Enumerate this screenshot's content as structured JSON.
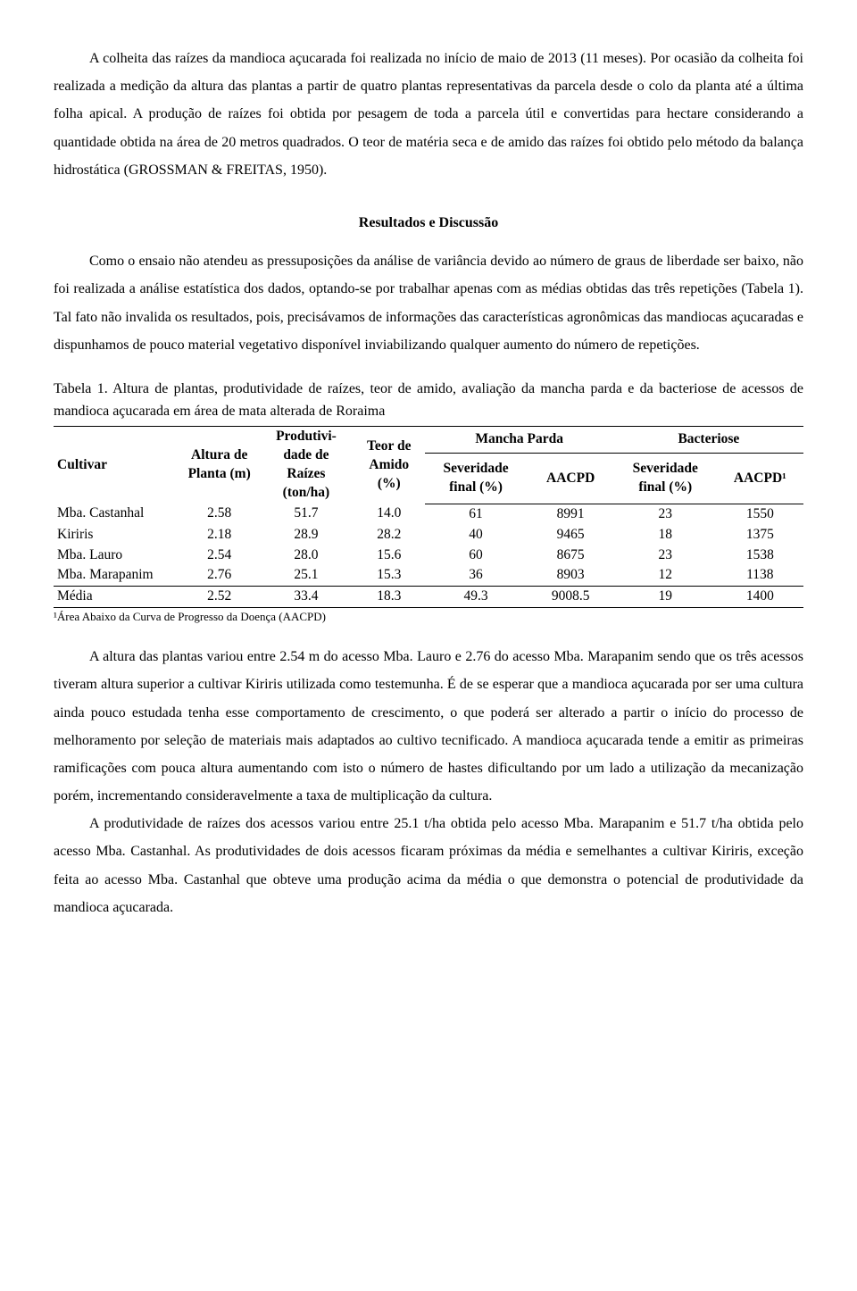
{
  "para1": "A colheita das raízes da mandioca açucarada foi realizada no início de maio de 2013 (11 meses). Por ocasião da colheita foi realizada a medição da altura das plantas a partir de quatro plantas representativas da parcela desde o colo da planta até a última folha apical. A produção de raízes foi obtida por pesagem de toda a parcela útil e convertidas para hectare considerando a quantidade obtida na área de 20 metros quadrados. O teor de matéria seca e de amido das raízes foi obtido pelo método da balança hidrostática (GROSSMAN & FREITAS, 1950).",
  "section_title": "Resultados e Discussão",
  "para2": "Como o ensaio não atendeu as pressuposições da análise de variância devido ao número de graus de liberdade ser baixo, não foi realizada a análise estatística dos dados, optando-se por trabalhar apenas com as médias obtidas das três repetições (Tabela 1). Tal fato não invalida os resultados, pois, precisávamos de informações das características agronômicas das mandiocas açucaradas e dispunhamos de pouco material vegetativo disponível inviabilizando qualquer aumento do número de repetições.",
  "table_caption": "Tabela 1. Altura de plantas, produtividade de raízes, teor de amido, avaliação da mancha parda e da bacteriose de acessos de mandioca açucarada em área de mata alterada de Roraima",
  "table": {
    "headers": {
      "cultivar": "Cultivar",
      "altura": "Altura de Planta (m)",
      "produt": "Produtivi-dade de Raízes (ton/ha)",
      "teor": "Teor de Amido (%)",
      "mancha": "Mancha Parda",
      "bact": "Bacteriose",
      "sev": "Severidade final (%)",
      "aacpd": "AACPD",
      "aacpd1": "AACPD¹"
    },
    "rows": [
      {
        "c": "Mba. Castanhal",
        "alt": "2.58",
        "pr": "51.7",
        "te": "14.0",
        "ms": "61",
        "ma": "8991",
        "bs": "23",
        "ba": "1550"
      },
      {
        "c": "Kiriris",
        "alt": "2.18",
        "pr": "28.9",
        "te": "28.2",
        "ms": "40",
        "ma": "9465",
        "bs": "18",
        "ba": "1375"
      },
      {
        "c": "Mba. Lauro",
        "alt": "2.54",
        "pr": "28.0",
        "te": "15.6",
        "ms": "60",
        "ma": "8675",
        "bs": "23",
        "ba": "1538"
      },
      {
        "c": "Mba. Marapanim",
        "alt": "2.76",
        "pr": "25.1",
        "te": "15.3",
        "ms": "36",
        "ma": "8903",
        "bs": "12",
        "ba": "1138"
      },
      {
        "c": "Média",
        "alt": "2.52",
        "pr": "33.4",
        "te": "18.3",
        "ms": "49.3",
        "ma": "9008.5",
        "bs": "19",
        "ba": "1400"
      }
    ]
  },
  "footnote": "¹Área Abaixo da Curva de Progresso da Doença (AACPD)",
  "para3": "A altura das plantas variou entre 2.54 m do acesso Mba. Lauro e 2.76 do acesso Mba. Marapanim sendo que os três acessos tiveram altura superior a cultivar Kiriris utilizada como testemunha. É de se esperar que a mandioca açucarada por ser uma cultura ainda pouco estudada tenha esse comportamento de crescimento, o que poderá ser alterado a partir o início do processo de melhoramento por seleção de materiais mais adaptados ao cultivo tecnificado. A mandioca açucarada tende a emitir as primeiras ramificações com pouca altura aumentando com isto o número de hastes dificultando por um lado a utilização da mecanização porém, incrementando consideravelmente a taxa de multiplicação da cultura.",
  "para4": "A produtividade de raízes dos acessos variou entre 25.1 t/ha obtida pelo acesso Mba. Marapanim e 51.7 t/ha obtida pelo acesso Mba. Castanhal. As produtividades de dois acessos ficaram próximas da média e semelhantes a cultivar Kiriris, exceção feita ao acesso Mba. Castanhal que obteve uma produção acima da média o que demonstra o potencial de produtividade da mandioca açucarada."
}
